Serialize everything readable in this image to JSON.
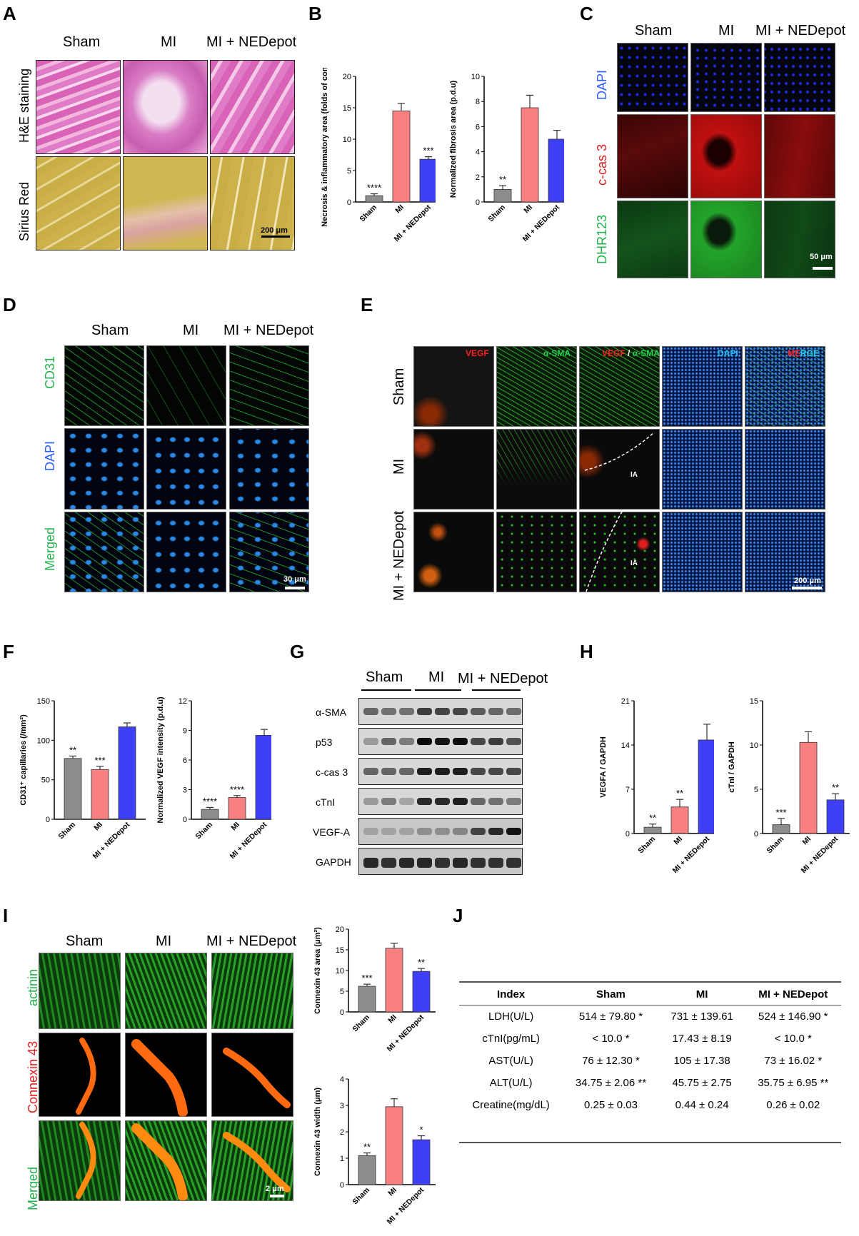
{
  "panels": {
    "A": {
      "letter": "A",
      "columns": [
        "Sham",
        "MI",
        "MI + NEDepot"
      ],
      "rows": [
        "H&E staining",
        "Sirius Red"
      ],
      "scale": "200 μm",
      "colors": {
        "he": "#e27bc6",
        "sirius": "#d5bd55"
      }
    },
    "B": {
      "letter": "B"
    },
    "C": {
      "letter": "C",
      "columns": [
        "Sham",
        "MI",
        "MI + NEDepot"
      ],
      "rows": [
        "DAPI",
        "c-cas 3",
        "DHR123"
      ],
      "row_colors": [
        "#2a5cff",
        "#e02020",
        "#22b14c"
      ],
      "scale": "50 μm"
    },
    "D": {
      "letter": "D",
      "columns": [
        "Sham",
        "MI",
        "MI + NEDepot"
      ],
      "rows": [
        "CD31",
        "DAPI",
        "Merged"
      ],
      "row_colors": [
        "#22b14c",
        "#2a5cff",
        "#22b14c"
      ],
      "scale": "30 μm"
    },
    "E": {
      "letter": "E",
      "rows": [
        "Sham",
        "MI",
        "MI + NEDepot"
      ],
      "col_vegf": "VEGF",
      "col_sma": "α-SMA",
      "col_slash": "/",
      "col_dapi": "DAPI",
      "col_merge_me": "ME",
      "col_merge_rge": "RGE",
      "ia": "IA",
      "scale": "200 μm"
    },
    "F": {
      "letter": "F"
    },
    "G": {
      "letter": "G",
      "groups": [
        "Sham",
        "MI",
        "MI + NEDepot"
      ],
      "bands": [
        "α-SMA",
        "p53",
        "c-cas 3",
        "cTnI",
        "VEGF-A",
        "GAPDH"
      ]
    },
    "H": {
      "letter": "H"
    },
    "I": {
      "letter": "I",
      "columns": [
        "Sham",
        "MI",
        "MI + NEDepot"
      ],
      "rows": [
        "actinin",
        "Connexin 43",
        "Merged"
      ],
      "row_colors": [
        "#22b14c",
        "#e02020",
        "#22b14c"
      ],
      "scale": "2 μm"
    },
    "J": {
      "letter": "J",
      "headers": [
        "Index",
        "Sham",
        "MI",
        "MI + NEDepot"
      ],
      "rows": [
        [
          "LDH(U/L)",
          "514 ± 79.80 *",
          "731 ± 139.61",
          "524 ± 146.90 *"
        ],
        [
          "cTnI(pg/mL)",
          "< 10.0 *",
          "17.43 ± 8.19",
          "< 10.0 *"
        ],
        [
          "AST(U/L)",
          "76 ± 12.30 *",
          "105 ± 17.38",
          "73 ± 16.02 *"
        ],
        [
          "ALT(U/L)",
          "34.75 ± 2.06 **",
          "45.75 ± 2.75",
          "35.75 ± 6.95 **"
        ],
        [
          "Creatine(mg/dL)",
          "0.25 ± 0.03",
          "0.44 ± 0.24",
          "0.26 ± 0.02"
        ]
      ]
    }
  },
  "colors": {
    "sham": "#8c8c8c",
    "mi": "#f88080",
    "ned": "#3f3ff5"
  },
  "chart_data": [
    {
      "id": "B1",
      "type": "bar",
      "categories": [
        "Sham",
        "MI",
        "MI + NEDepot"
      ],
      "values": [
        1.0,
        14.5,
        6.8
      ],
      "errors": [
        0.3,
        1.2,
        0.4
      ],
      "sig": [
        "****",
        "",
        "***"
      ],
      "ylabel": "Necrosis & inflammatory area (folds of control)",
      "ylim": [
        0,
        20
      ],
      "yticks": [
        0,
        5,
        10,
        15,
        20
      ]
    },
    {
      "id": "B2",
      "type": "bar",
      "categories": [
        "Sham",
        "MI",
        "MI + NEDepot"
      ],
      "values": [
        1.0,
        7.5,
        5.0
      ],
      "errors": [
        0.3,
        1.0,
        0.7
      ],
      "sig": [
        "**",
        "",
        ""
      ],
      "ylabel": "Normalized fibrosis area (p.d.u)",
      "ylim": [
        0,
        10
      ],
      "yticks": [
        0,
        2,
        4,
        6,
        8,
        10
      ]
    },
    {
      "id": "F1",
      "type": "bar",
      "categories": [
        "Sham",
        "MI",
        "MI + NEDepot"
      ],
      "values": [
        77,
        63,
        117
      ],
      "errors": [
        3,
        4,
        5
      ],
      "sig": [
        "**",
        "***",
        ""
      ],
      "ylabel": "CD31⁺ capillaries (/mm²)",
      "ylim": [
        0,
        150
      ],
      "yticks": [
        0,
        50,
        100,
        150
      ]
    },
    {
      "id": "F2",
      "type": "bar",
      "categories": [
        "Sham",
        "MI",
        "MI + NEDepot"
      ],
      "values": [
        1.0,
        2.2,
        8.5
      ],
      "errors": [
        0.2,
        0.2,
        0.6
      ],
      "sig": [
        "****",
        "****",
        ""
      ],
      "ylabel": "Normalized VEGF intensity (p.d.u)",
      "ylim": [
        0,
        12
      ],
      "yticks": [
        0,
        3,
        6,
        9,
        12
      ]
    },
    {
      "id": "H1",
      "type": "bar",
      "categories": [
        "Sham",
        "MI",
        "MI + NEDepot"
      ],
      "values": [
        1.0,
        4.2,
        14.8
      ],
      "errors": [
        0.5,
        1.2,
        2.5
      ],
      "sig": [
        "**",
        "**",
        ""
      ],
      "ylabel": "VEGFA / GAPDH",
      "ylim": [
        0,
        21
      ],
      "yticks": [
        0,
        7,
        14,
        21
      ]
    },
    {
      "id": "H2",
      "type": "bar",
      "categories": [
        "Sham",
        "MI",
        "MI + NEDepot"
      ],
      "values": [
        1.0,
        10.3,
        3.8
      ],
      "errors": [
        0.7,
        1.2,
        0.7
      ],
      "sig": [
        "***",
        "",
        "**"
      ],
      "ylabel": "cTnI / GAPDH",
      "ylim": [
        0,
        15
      ],
      "yticks": [
        0,
        5,
        10,
        15
      ]
    },
    {
      "id": "I1",
      "type": "bar",
      "categories": [
        "Sham",
        "MI",
        "MI + NEDepot"
      ],
      "values": [
        6.2,
        15.4,
        9.8
      ],
      "errors": [
        0.5,
        1.2,
        0.7
      ],
      "sig": [
        "***",
        "",
        "**"
      ],
      "ylabel": "Connexin 43 area (μm²)",
      "ylim": [
        0,
        20
      ],
      "yticks": [
        0,
        5,
        10,
        15,
        20
      ]
    },
    {
      "id": "I2",
      "type": "bar",
      "categories": [
        "Sham",
        "MI",
        "MI + NEDepot"
      ],
      "values": [
        1.1,
        2.95,
        1.7
      ],
      "errors": [
        0.1,
        0.3,
        0.15
      ],
      "sig": [
        "**",
        "",
        "*"
      ],
      "ylabel": "Connexin 43 width (μm)",
      "ylim": [
        0,
        4
      ],
      "yticks": [
        0,
        1,
        2,
        3,
        4
      ]
    }
  ]
}
